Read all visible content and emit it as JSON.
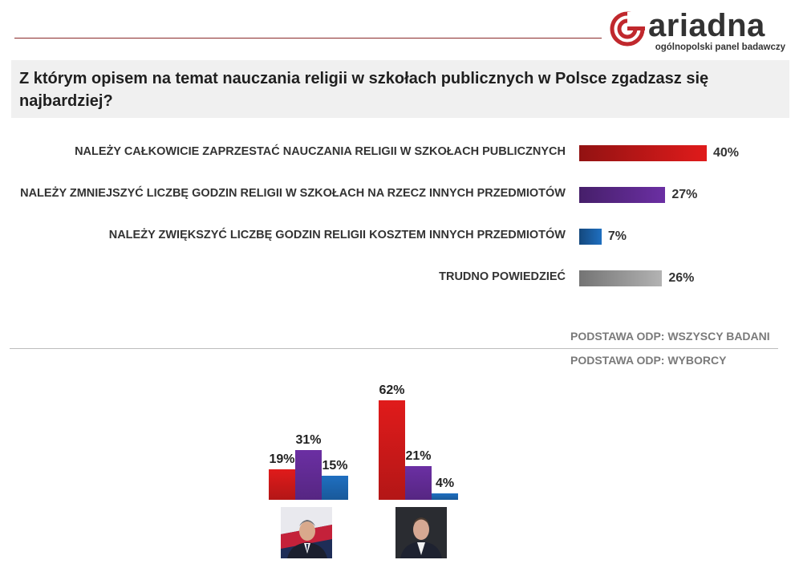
{
  "brand": {
    "name": "ariadna",
    "tagline": "ogólnopolski panel badawczy",
    "color": "#c0282d"
  },
  "question": "Z którym opisem na temat nauczania religii w szkołach publicznych w Polsce zgadzasz się najbardziej?",
  "colors": {
    "red": "#e01b1b",
    "purple": "#6b2fa3",
    "blue": "#1f6fc0",
    "gray": "#b3b3b3"
  },
  "chart_data": [
    {
      "type": "bar",
      "orientation": "horizontal",
      "categories": [
        "NALEŻY CAŁKOWICIE ZAPRZESTAĆ NAUCZANIA RELIGII W SZKOŁACH PUBLICZNYCH",
        "NALEŻY ZMNIEJSZYĆ LICZBĘ GODZIN RELIGII W SZKOŁACH NA RZECZ INNYCH PRZEDMIOTÓW",
        "NALEŻY ZWIĘKSZYĆ LICZBĘ GODZIN RELIGII KOSZTEM INNYCH PRZEDMIOTÓW",
        "TRUDNO POWIEDZIEĆ"
      ],
      "values": [
        40,
        27,
        7,
        26
      ],
      "value_labels": [
        "40%",
        "27%",
        "7%",
        "26%"
      ],
      "bar_colors": [
        "red",
        "purple",
        "blue",
        "gray"
      ],
      "base_note": "PODSTAWA ODP: WSZYSCY BADANI"
    },
    {
      "type": "bar",
      "orientation": "vertical",
      "groups": [
        {
          "portrait": "duda-portrait",
          "values": [
            19,
            31,
            15
          ],
          "value_labels": [
            "19%",
            "31%",
            "15%"
          ]
        },
        {
          "portrait": "trzaskowski-portrait",
          "values": [
            62,
            21,
            4
          ],
          "value_labels": [
            "62%",
            "21%",
            "4%"
          ]
        }
      ],
      "series_colors": [
        "red",
        "purple",
        "blue"
      ],
      "base_note": "PODSTAWA ODP: WYBORCY"
    }
  ]
}
